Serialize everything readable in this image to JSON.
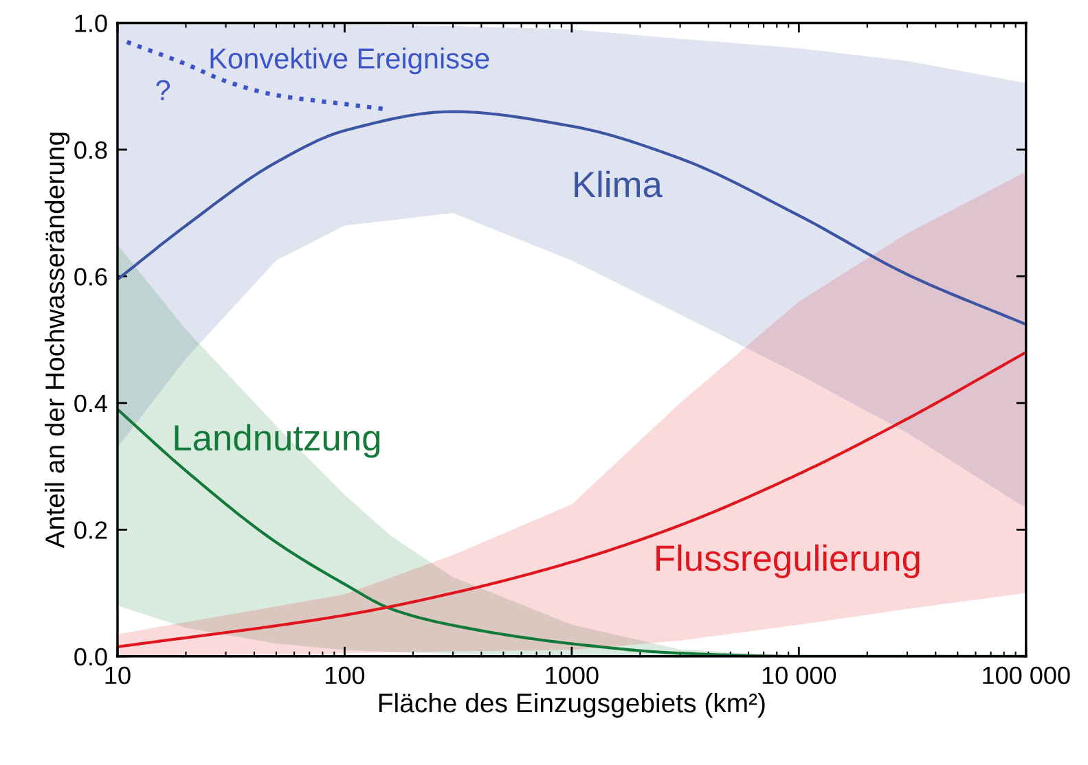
{
  "chart_data": {
    "type": "line",
    "xlabel": "Fläche des Einzugsgebiets (km²)",
    "ylabel": "Anteil an der Hochwasseränderung",
    "log": "x",
    "xlim": [
      10,
      100000
    ],
    "ylim": [
      0,
      1.0
    ],
    "xticks": [
      10,
      100,
      1000,
      {
        "value": 10000,
        "label": "10 000"
      },
      {
        "value": 100000,
        "label": "100 000"
      }
    ],
    "yticks": [
      {
        "value": 0,
        "label": "0.0"
      },
      0.2,
      0.4,
      0.6,
      0.8,
      {
        "value": 1.0,
        "label": "1.0"
      }
    ],
    "grid": false,
    "legend": false,
    "series": [
      {
        "name": "Klima",
        "color": "#3b55a3",
        "x": [
          10,
          20,
          50,
          100,
          300,
          1000,
          3000,
          10000,
          30000,
          100000
        ],
        "values": [
          0.595,
          0.68,
          0.78,
          0.83,
          0.86,
          0.837,
          0.786,
          0.696,
          0.603,
          0.524
        ],
        "lower": [
          0.33,
          0.47,
          0.625,
          0.68,
          0.7,
          0.625,
          0.54,
          0.445,
          0.353,
          0.234
        ],
        "upper": [
          1.0,
          1.0,
          1.0,
          0.998,
          0.995,
          0.99,
          0.975,
          0.96,
          0.94,
          0.905
        ]
      },
      {
        "name": "Konvektive Ereignisse",
        "color": "#3b55c8",
        "line_style": "dotted",
        "x": [
          11,
          20,
          30,
          50,
          100,
          150
        ],
        "values": [
          0.97,
          0.935,
          0.908,
          0.886,
          0.872,
          0.864
        ]
      },
      {
        "name": "Landnutzung",
        "color": "#137a3a",
        "x": [
          10,
          20,
          50,
          100,
          160,
          300,
          1000,
          3000,
          10000,
          100000
        ],
        "values": [
          0.39,
          0.293,
          0.18,
          0.114,
          0.075,
          0.049,
          0.02,
          0.005,
          0.0,
          0.0
        ],
        "lower": [
          0.08,
          0.045,
          0.02,
          0.01,
          0.007,
          0.004,
          0.0,
          0.0,
          0.0,
          0.0
        ],
        "upper": [
          0.65,
          0.516,
          0.364,
          0.255,
          0.19,
          0.125,
          0.05,
          0.011,
          0.0,
          0.0
        ]
      },
      {
        "name": "Flussregulierung",
        "color": "#e0161e",
        "x": [
          10,
          100,
          300,
          1000,
          3000,
          10000,
          30000,
          100000
        ],
        "values": [
          0.015,
          0.065,
          0.1,
          0.149,
          0.207,
          0.288,
          0.375,
          0.48
        ],
        "lower": [
          0.0,
          0.005,
          0.008,
          0.01,
          0.025,
          0.05,
          0.075,
          0.1
        ],
        "upper": [
          0.035,
          0.098,
          0.16,
          0.24,
          0.4,
          0.56,
          0.668,
          0.765
        ]
      }
    ],
    "annotations": [
      "?"
    ]
  }
}
